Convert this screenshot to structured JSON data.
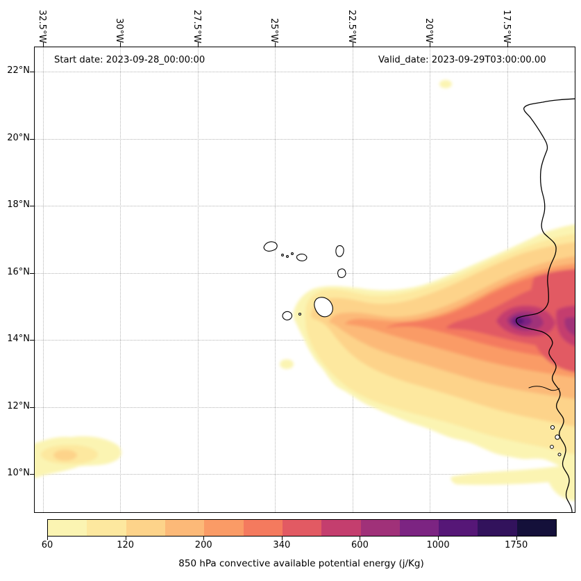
{
  "figure": {
    "start_date_label": "Start date: 2023-09-28_00:00:00",
    "valid_date_label": "Valid_date: 2023-09-29T03:00:00.00"
  },
  "axes": {
    "x_ticks": [
      "32.5°W",
      "30°W",
      "27.5°W",
      "25°W",
      "22.5°W",
      "20°W",
      "17.5°W"
    ],
    "y_ticks": [
      "22°N",
      "20°N",
      "18°N",
      "16°N",
      "14°N",
      "12°N",
      "10°N"
    ]
  },
  "chart_data": {
    "type": "heatmap",
    "title": "",
    "variable": "850 hPa convective available potential energy",
    "units": "j/Kg",
    "xlabel": "",
    "ylabel": "",
    "extent": {
      "lon_min": -32.8,
      "lon_max": -15.3,
      "lat_min": 8.9,
      "lat_max": 22.7
    },
    "grid": "dotted",
    "colorbar": {
      "label": "850 hPa convective available potential energy (j/Kg)",
      "orientation": "horizontal",
      "tick_labels": [
        "60",
        "120",
        "200",
        "340",
        "600",
        "1000",
        "1750"
      ],
      "tick_values": [
        60,
        120,
        200,
        340,
        600,
        1000,
        1750
      ],
      "levels": [
        60,
        90,
        120,
        160,
        200,
        260,
        340,
        450,
        600,
        780,
        1000,
        1350,
        1750,
        2300
      ],
      "colors": [
        "#fbf4b2",
        "#fde89f",
        "#fdd38a",
        "#fcb978",
        "#fa9b66",
        "#f47a5e",
        "#e25a63",
        "#c43e6e",
        "#a03179",
        "#7c2482",
        "#561777",
        "#32125c",
        "#14103a"
      ]
    },
    "features": [
      {
        "region": "peak core just off Dakar, Senegal coast (~17.3°W, 14.6°N)",
        "value_range_j_per_kg": [
          1350,
          2300
        ]
      },
      {
        "region": "coastal strip along Senegal/Mauritania coast 13°N-16°N",
        "value_range_j_per_kg": [
          450,
          1350
        ]
      },
      {
        "region": "zonal maximum band along ~14.5°N from 23°W to the African coast",
        "value_range_j_per_kg": [
          340,
          1000
        ]
      },
      {
        "region": "broad moderate area 10°N-14°N east of 23°W including Cape Verde region",
        "value_range_j_per_kg": [
          60,
          340
        ]
      },
      {
        "region": "isolated patch near 31°W, 10.5°N",
        "value_range_j_per_kg": [
          60,
          200
        ]
      },
      {
        "region": "small spot near 19.7°W, 21.5°N",
        "value_range_j_per_kg": [
          60,
          90
        ]
      }
    ],
    "geography": [
      "West African coastline (Mauritania, Senegal, Gambia)",
      "Cape Verde islands"
    ]
  }
}
